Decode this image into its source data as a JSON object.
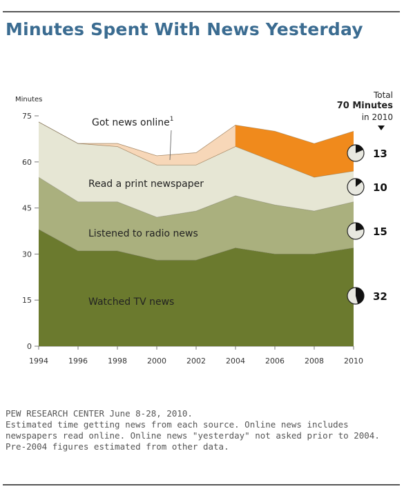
{
  "title": "Minutes Spent With News Yesterday",
  "total": {
    "label": "Total",
    "value_text": "70 Minutes",
    "year_text": "in 2010"
  },
  "footer": {
    "source": "PEW RESEARCH CENTER June 8-28, 2010.",
    "note": "Estimated time getting news from each source. Online news includes newspapers read online. Online news \"yesterday\" not asked prior to 2004. Pre-2004 figures estimated from other data."
  },
  "colors": {
    "tv": "#6b7a2e",
    "radio": "#aab07e",
    "print": "#e6e6d4",
    "online_pre": "#f7d7b8",
    "online_post": "#f08a1c",
    "title": "#3b6c91"
  },
  "chart_data": {
    "type": "area",
    "stacked": true,
    "ylabel": "Minutes",
    "ylim": [
      0,
      75
    ],
    "yticks": [
      0,
      15,
      30,
      45,
      60,
      75
    ],
    "x": [
      1994,
      1996,
      1998,
      2000,
      2002,
      2004,
      2006,
      2008,
      2010
    ],
    "xtick_labels": [
      "1994",
      "1996",
      "1998",
      "2000",
      "2002",
      "2004",
      "2006",
      "2008",
      "2010"
    ],
    "series": [
      {
        "name": "Watched TV news",
        "key": "tv",
        "values": [
          38,
          31,
          31,
          28,
          28,
          32,
          30,
          30,
          32
        ]
      },
      {
        "name": "Listened to radio news",
        "key": "radio",
        "values": [
          17,
          16,
          16,
          14,
          16,
          17,
          16,
          14,
          15
        ]
      },
      {
        "name": "Read a print newspaper",
        "key": "print",
        "values": [
          18,
          19,
          18,
          17,
          15,
          16,
          14,
          11,
          10
        ]
      },
      {
        "name": "Got news online",
        "superscript": "1",
        "key": "online",
        "values": [
          0,
          0,
          1,
          3,
          4,
          7,
          10,
          11,
          13
        ]
      }
    ],
    "latest_values": [
      {
        "key": "online",
        "value": 13,
        "label": "13"
      },
      {
        "key": "print",
        "value": 10,
        "label": "10"
      },
      {
        "key": "radio",
        "value": 15,
        "label": "15"
      },
      {
        "key": "tv",
        "value": 32,
        "label": "32"
      }
    ],
    "total_2010": 70
  }
}
